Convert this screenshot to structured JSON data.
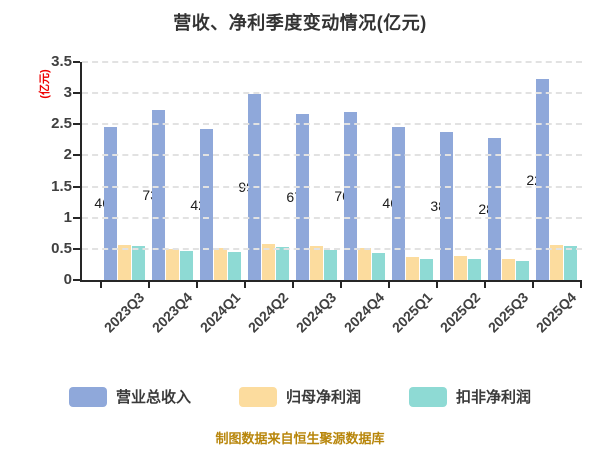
{
  "title": "营收、净利季度变动情况(亿元)",
  "footer": "制图数据来自恒生聚源数据库",
  "y_axis": {
    "unit_label": "(亿元)",
    "ticks": [
      0,
      0.5,
      1,
      1.5,
      2,
      2.5,
      3,
      3.5
    ]
  },
  "colors": {
    "revenue": "#8fa8da",
    "net_profit": "#fcdc9e",
    "net_profit_ex": "#8edad4",
    "axis": "#262626",
    "gridline": "#e2e2e2",
    "unit_label": "#ee0000",
    "footer": "#b8860b"
  },
  "legend": [
    {
      "label": "营业总收入",
      "color": "#8fa8da"
    },
    {
      "label": "归母净利润",
      "color": "#fcdc9e"
    },
    {
      "label": "扣非净利润",
      "color": "#8edad4"
    }
  ],
  "chart_data": {
    "type": "bar",
    "title": "营收、净利季度变动情况(亿元)",
    "ylabel": "(亿元)",
    "ylim": [
      0,
      3.5
    ],
    "ytick_step": 0.5,
    "grid": true,
    "legend_position": "bottom",
    "categories": [
      "2023Q3",
      "2023Q4",
      "2024Q1",
      "2024Q2",
      "2024Q3",
      "2024Q4",
      "2025Q1",
      "2025Q2",
      "2025Q3",
      "2025Q4"
    ],
    "series": [
      {
        "name": "营业总收入",
        "color": "#8fa8da",
        "values": [
          2.46,
          2.73,
          2.42,
          2.99,
          2.67,
          2.7,
          2.46,
          2.38,
          2.28,
          3.22
        ],
        "visible_label_fragments": [
          "46",
          "73",
          "42",
          "99",
          "67",
          "70",
          "46",
          "38",
          "28",
          "22"
        ]
      },
      {
        "name": "归母净利润",
        "color": "#fcdc9e",
        "values": [
          0.57,
          0.5,
          0.51,
          0.58,
          0.55,
          0.51,
          0.37,
          0.38,
          0.34,
          0.57
        ]
      },
      {
        "name": "扣非净利润",
        "color": "#8edad4",
        "values": [
          0.54,
          0.46,
          0.45,
          0.53,
          0.48,
          0.44,
          0.33,
          0.33,
          0.3,
          0.54
        ]
      }
    ]
  }
}
